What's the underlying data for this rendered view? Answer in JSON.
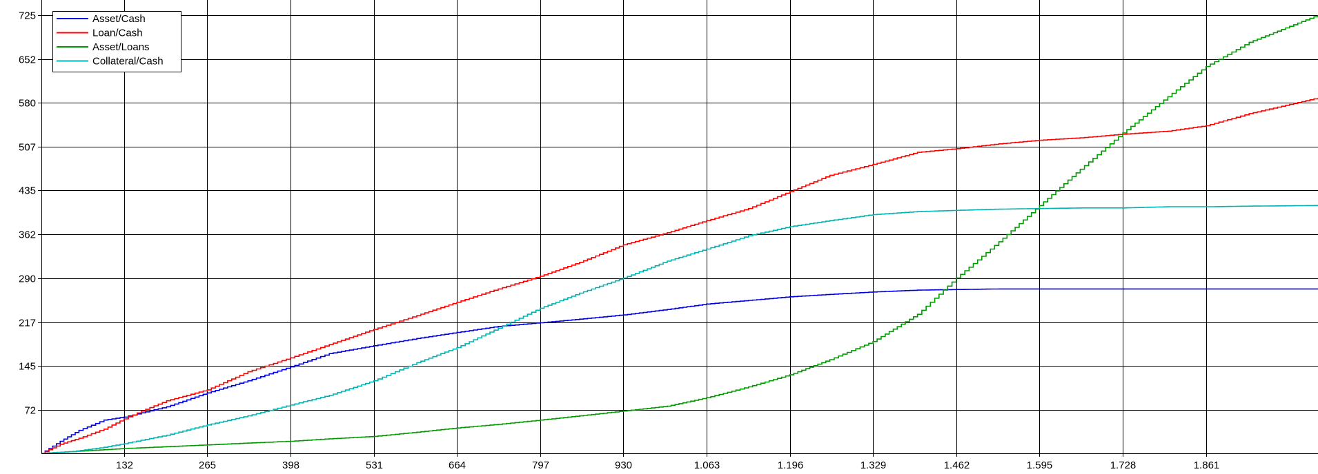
{
  "chart_data": {
    "type": "line",
    "title": "",
    "xlabel": "",
    "ylabel": "",
    "xlim": [
      0,
      2040
    ],
    "ylim": [
      0,
      750
    ],
    "grid": true,
    "legend_position": "top-left",
    "x_ticks": [
      132,
      265,
      398,
      531,
      664,
      797,
      930,
      1063,
      1196,
      1329,
      1462,
      1595,
      1728,
      1861
    ],
    "x_tick_labels": [
      "132",
      "265",
      "398",
      "531",
      "664",
      "797",
      "930",
      "1.063",
      "1.196",
      "1.329",
      "1.462",
      "1.595",
      "1.728",
      "1.861"
    ],
    "y_ticks": [
      72,
      145,
      217,
      290,
      362,
      435,
      507,
      580,
      652,
      725
    ],
    "y_tick_labels": [
      "72",
      "145",
      "217",
      "290",
      "362",
      "435",
      "507",
      "580",
      "652",
      "725"
    ],
    "series": [
      {
        "name": "Asset/Cash",
        "color": "#0000e0",
        "x": [
          0,
          30,
          60,
          100,
          132,
          160,
          200,
          265,
          330,
          398,
          460,
          531,
          600,
          664,
          730,
          797,
          860,
          930,
          1000,
          1063,
          1130,
          1196,
          1260,
          1329,
          1400,
          1462,
          1530,
          1595,
          1660,
          1728,
          1800,
          1861,
          1930,
          2040
        ],
        "y": [
          0,
          20,
          38,
          55,
          60,
          67,
          77,
          100,
          120,
          143,
          165,
          178,
          190,
          200,
          210,
          216,
          222,
          229,
          238,
          247,
          253,
          259,
          263,
          267,
          270,
          271,
          272,
          272,
          272,
          272,
          272,
          272,
          272,
          272
        ]
      },
      {
        "name": "Loan/Cash",
        "color": "#ff0000",
        "x": [
          0,
          30,
          60,
          100,
          132,
          160,
          200,
          265,
          330,
          398,
          460,
          531,
          600,
          664,
          730,
          797,
          860,
          930,
          1000,
          1063,
          1130,
          1196,
          1260,
          1329,
          1400,
          1462,
          1530,
          1595,
          1660,
          1728,
          1800,
          1861,
          1930,
          2040
        ],
        "y": [
          0,
          15,
          25,
          40,
          57,
          70,
          87,
          105,
          135,
          158,
          180,
          205,
          228,
          250,
          272,
          293,
          316,
          345,
          365,
          385,
          405,
          433,
          460,
          478,
          498,
          504,
          512,
          518,
          522,
          528,
          533,
          542,
          562,
          588
        ]
      },
      {
        "name": "Asset/Loans",
        "color": "#009900",
        "x": [
          0,
          50,
          100,
          132,
          200,
          265,
          330,
          398,
          460,
          531,
          600,
          664,
          730,
          797,
          860,
          930,
          1000,
          1063,
          1130,
          1196,
          1260,
          1329,
          1400,
          1462,
          1530,
          1595,
          1660,
          1728,
          1800,
          1861,
          1930,
          2040
        ],
        "y": [
          0,
          3,
          6,
          8,
          11,
          14,
          17,
          20,
          24,
          28,
          35,
          42,
          48,
          55,
          62,
          70,
          78,
          92,
          110,
          130,
          155,
          185,
          230,
          290,
          350,
          410,
          470,
          530,
          590,
          640,
          680,
          725
        ]
      },
      {
        "name": "Collateral/Cash",
        "color": "#00b3b3",
        "x": [
          0,
          50,
          100,
          132,
          200,
          265,
          330,
          398,
          460,
          531,
          600,
          664,
          730,
          797,
          860,
          930,
          1000,
          1063,
          1130,
          1196,
          1260,
          1329,
          1400,
          1462,
          1530,
          1595,
          1660,
          1728,
          1800,
          1861,
          1930,
          2040
        ],
        "y": [
          0,
          3,
          10,
          16,
          30,
          47,
          62,
          80,
          96,
          120,
          150,
          175,
          207,
          240,
          265,
          290,
          318,
          338,
          360,
          375,
          385,
          395,
          400,
          402,
          404,
          405,
          406,
          406,
          408,
          408,
          409,
          410
        ]
      }
    ]
  }
}
